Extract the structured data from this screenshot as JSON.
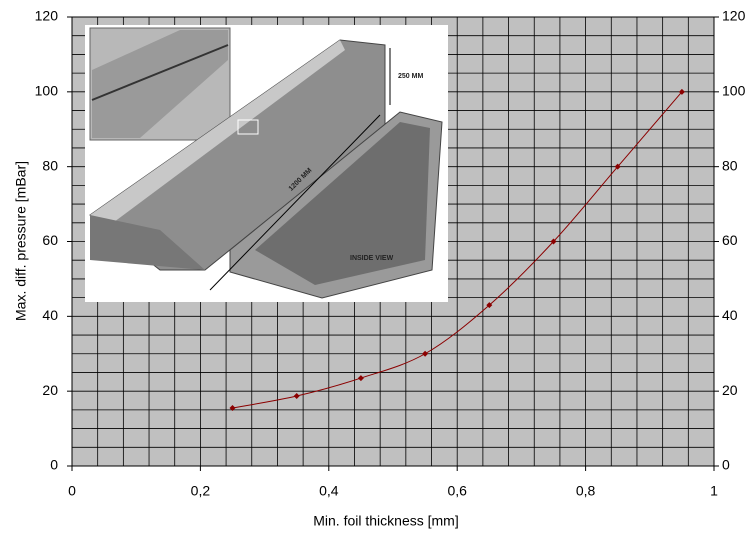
{
  "chart_data": {
    "type": "line",
    "xlabel": "Min. foil  thickness  [mm]",
    "ylabel": "Max. diff. pressure [mBar]",
    "x": [
      0.25,
      0.35,
      0.45,
      0.55,
      0.65,
      0.75,
      0.85,
      0.95
    ],
    "series": [
      {
        "color": "#8b0000",
        "values": [
          15.5,
          18.7,
          23.5,
          30,
          43,
          60,
          80,
          100
        ]
      }
    ],
    "xlim": [
      0,
      1
    ],
    "ylim": [
      0,
      120
    ],
    "xticks": [
      0,
      {
        "value": 0.2,
        "label": "0,2"
      },
      {
        "value": 0.4,
        "label": "0,4"
      },
      {
        "value": 0.6,
        "label": "0,6"
      },
      {
        "value": 0.8,
        "label": "0,8"
      },
      1
    ],
    "yticks": [
      0,
      20,
      40,
      60,
      80,
      100,
      120
    ],
    "xgrid": [
      0,
      0.04,
      0.08,
      0.12,
      0.16,
      0.2,
      0.24,
      0.28,
      0.32,
      0.36,
      0.4,
      0.44,
      0.48,
      0.52,
      0.56,
      0.6,
      0.64,
      0.68,
      0.72,
      0.76,
      0.8,
      0.84,
      0.88,
      0.92,
      0.96,
      1
    ],
    "ygrid": [
      0,
      5,
      10,
      15,
      20,
      25,
      30,
      35,
      40,
      45,
      50,
      55,
      60,
      65,
      70,
      75,
      80,
      85,
      90,
      95,
      100,
      105,
      110,
      115,
      120
    ],
    "grid": true,
    "annotations": [
      "250 MM",
      "1200 MM",
      "INSIDE VIEW"
    ]
  }
}
